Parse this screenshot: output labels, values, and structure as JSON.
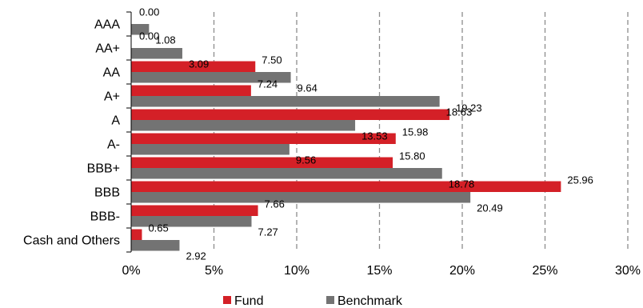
{
  "chart_data": {
    "type": "bar",
    "orientation": "horizontal",
    "categories": [
      "AAA",
      "AA+",
      "AA",
      "A+",
      "A",
      "A-",
      "BBB+",
      "BBB",
      "BBB-",
      "Cash and Others"
    ],
    "series": [
      {
        "name": "Fund",
        "color": "#d42027",
        "values": [
          0.0,
          0.0,
          7.5,
          7.24,
          19.23,
          15.98,
          15.8,
          25.96,
          7.66,
          0.65
        ],
        "labels": [
          "0.00",
          "0.00",
          "7.50",
          "7.24",
          "19.23",
          "15.98",
          "15.80",
          "25.96",
          "7.66",
          "0.65"
        ]
      },
      {
        "name": "Benchmark",
        "color": "#737373",
        "values": [
          1.08,
          3.09,
          9.64,
          18.63,
          13.53,
          9.56,
          18.78,
          20.49,
          7.27,
          2.92
        ],
        "labels": [
          "1.08",
          "3.09",
          "9.64",
          "18.63",
          "13.53",
          "9.56",
          "18.78",
          "20.49",
          "7.27",
          "2.92"
        ]
      }
    ],
    "xlim": [
      0,
      30
    ],
    "xticks": [
      0,
      5,
      10,
      15,
      20,
      25,
      30
    ],
    "xtick_labels": [
      "0%",
      "5%",
      "10%",
      "15%",
      "20%",
      "25%",
      "30%"
    ],
    "grid": "vertical dashed",
    "legend": "bottom-center",
    "title": "",
    "xlabel": "",
    "ylabel": ""
  }
}
